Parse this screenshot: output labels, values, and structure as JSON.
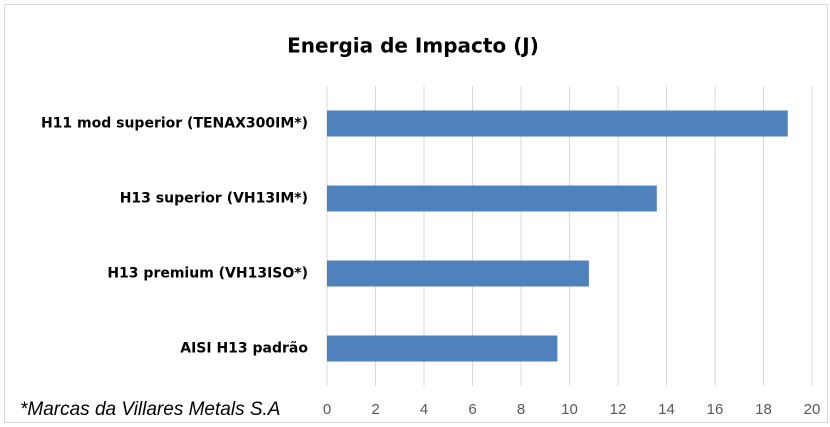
{
  "chart_data": {
    "type": "bar",
    "orientation": "horizontal",
    "title": "Energia de Impacto (J)",
    "categories": [
      "H11 mod superior (TENAX300IM*)",
      "H13 superior (VH13IM*)",
      "H13 premium (VH13ISO*)",
      "AISI H13 padrão"
    ],
    "values": [
      19,
      13.6,
      10.8,
      9.5
    ],
    "color": "#4f81bd",
    "xlim": [
      0,
      20
    ],
    "xticks": [
      0,
      2,
      4,
      6,
      8,
      10,
      12,
      14,
      16,
      18,
      20
    ],
    "grid": true,
    "annotation": "*Marcas da Villares Metals S.A"
  }
}
